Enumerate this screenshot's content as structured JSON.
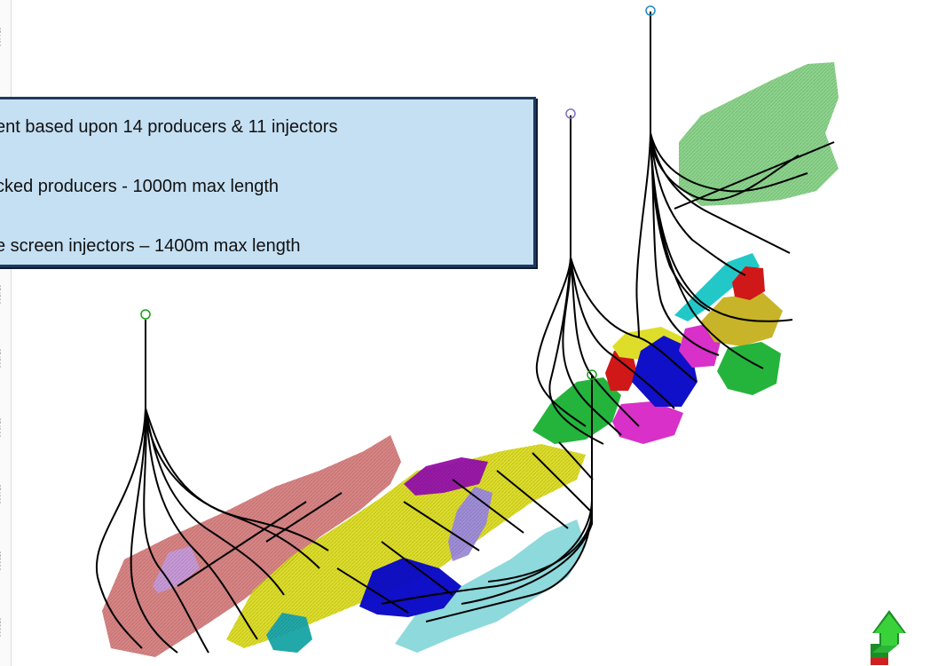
{
  "info_box": {
    "lines": [
      "ent based upon 14 producers & 11 injectors",
      "cked producers - 1000m max length",
      "e screen injectors – 1400m max length"
    ]
  },
  "ruler": {
    "labels": [
      "654400",
      "654300",
      "654200",
      "654100",
      "654000",
      "653900",
      "653800"
    ]
  },
  "colors": {
    "box_fill": "#c5e0f3",
    "box_border": "#1f3a60",
    "trajectory": "#000000",
    "region_pink": "#d98484",
    "region_yellow": "#dede2a",
    "region_cyan": "#8ed9dc",
    "region_blue": "#1010c8",
    "region_purple": "#9a1aa8",
    "region_lavender": "#a08ed8",
    "region_green": "#24b43c",
    "region_lightgreen": "#8cd48c",
    "region_magenta": "#d830c8",
    "region_red": "#d01818",
    "region_teal": "#22a8a8",
    "region_olive": "#c8b428"
  },
  "icons": {
    "north_arrow": "north-arrow-icon",
    "wellhead": "wellhead-circle-icon"
  }
}
